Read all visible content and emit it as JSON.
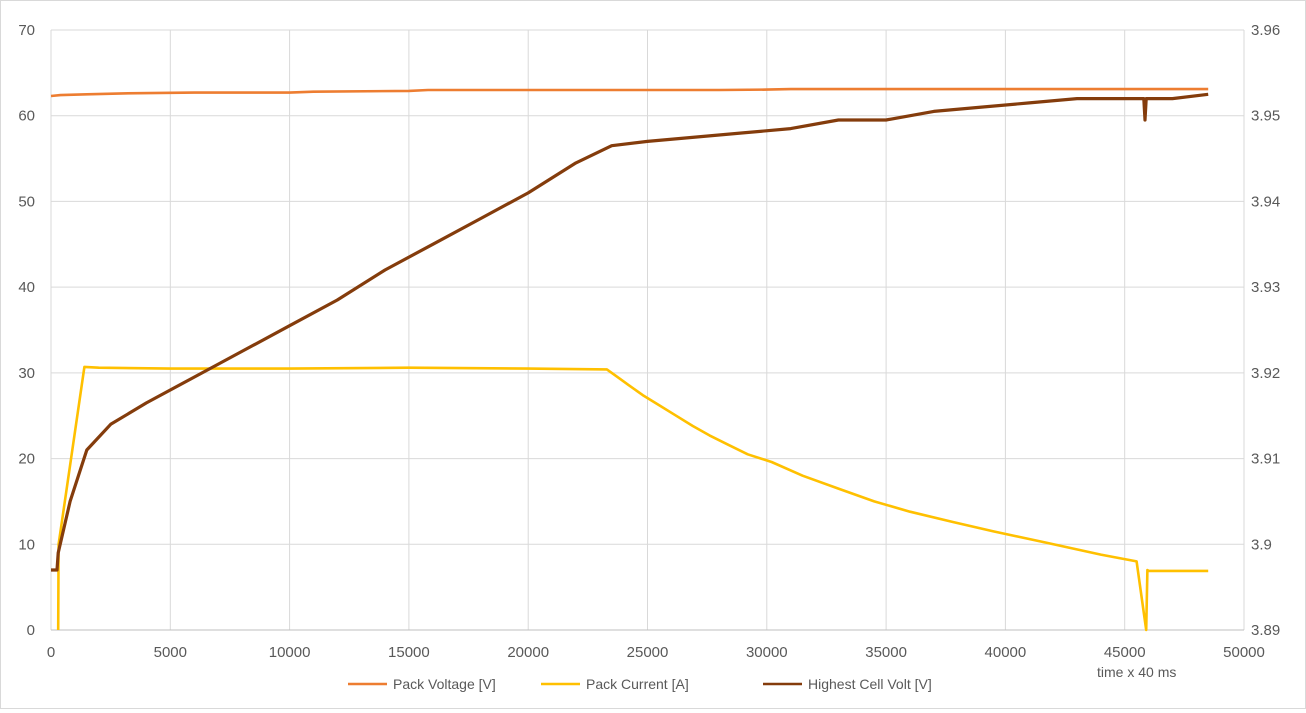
{
  "chart_data": {
    "type": "line",
    "title": "",
    "xlabel": "time x 40 ms",
    "ylabel": "",
    "xlim": [
      0,
      50000
    ],
    "ylim": [
      0,
      70
    ],
    "y2lim": [
      3.89,
      3.96
    ],
    "grid": true,
    "legend_position": "bottom",
    "x_ticks": [
      "0",
      "5000",
      "10000",
      "15000",
      "20000",
      "25000",
      "30000",
      "35000",
      "40000",
      "45000",
      "50000"
    ],
    "y_ticks": [
      "0",
      "10",
      "20",
      "30",
      "40",
      "50",
      "60",
      "70"
    ],
    "y2_ticks": [
      "3.89",
      "3.9",
      "3.91",
      "3.92",
      "3.93",
      "3.94",
      "3.95",
      "3.96"
    ],
    "series": [
      {
        "name": "Pack Voltage [V]",
        "axis": "left",
        "color": "#ED7D31",
        "x": [
          0,
          400,
          1500,
          3000,
          6000,
          10000,
          11000,
          15000,
          15800,
          20000,
          25000,
          28000,
          30000,
          31000,
          35000,
          40000,
          45000,
          48500
        ],
        "y": [
          62.3,
          62.4,
          62.5,
          62.6,
          62.7,
          62.7,
          62.8,
          62.9,
          63.0,
          63.0,
          63.0,
          63.0,
          63.05,
          63.1,
          63.1,
          63.1,
          63.1,
          63.1
        ]
      },
      {
        "name": "Pack Current [A]",
        "axis": "left",
        "color": "#FFC000",
        "x": [
          0,
          300,
          320,
          1400,
          2000,
          5000,
          10000,
          15000,
          20000,
          23300,
          23700,
          24200,
          24800,
          25500,
          26200,
          26900,
          27600,
          28400,
          29200,
          30200,
          31500,
          33000,
          34500,
          36000,
          37800,
          39500,
          41700,
          44000,
          45500,
          45900,
          45950,
          46000,
          48500
        ],
        "y": [
          null,
          0,
          10,
          30.7,
          30.6,
          30.5,
          30.5,
          30.6,
          30.5,
          30.4,
          29.6,
          28.6,
          27.4,
          26.2,
          25.0,
          23.8,
          22.7,
          21.6,
          20.5,
          19.6,
          18.0,
          16.5,
          15.0,
          13.8,
          12.6,
          11.5,
          10.2,
          8.8,
          8.0,
          0,
          7.0,
          6.9,
          6.9
        ]
      },
      {
        "name": "Highest Cell Volt [V]",
        "axis": "right",
        "color": "#843C0C",
        "x": [
          0,
          250,
          300,
          800,
          1500,
          2500,
          4000,
          6000,
          8000,
          10000,
          12000,
          14000,
          16000,
          18000,
          20000,
          22000,
          23500,
          25000,
          27000,
          29000,
          31000,
          33000,
          35000,
          37000,
          39000,
          41000,
          43000,
          45000,
          45800,
          45850,
          45900,
          47000,
          48500
        ],
        "y": [
          3.897,
          3.897,
          3.899,
          3.905,
          3.911,
          3.914,
          3.9165,
          3.9195,
          3.9225,
          3.9255,
          3.9285,
          3.932,
          3.935,
          3.938,
          3.941,
          3.9445,
          3.9465,
          3.947,
          3.9475,
          3.948,
          3.9485,
          3.9495,
          3.9495,
          3.9505,
          3.951,
          3.9515,
          3.952,
          3.952,
          3.952,
          3.9495,
          3.952,
          3.952,
          3.9525
        ]
      }
    ]
  }
}
